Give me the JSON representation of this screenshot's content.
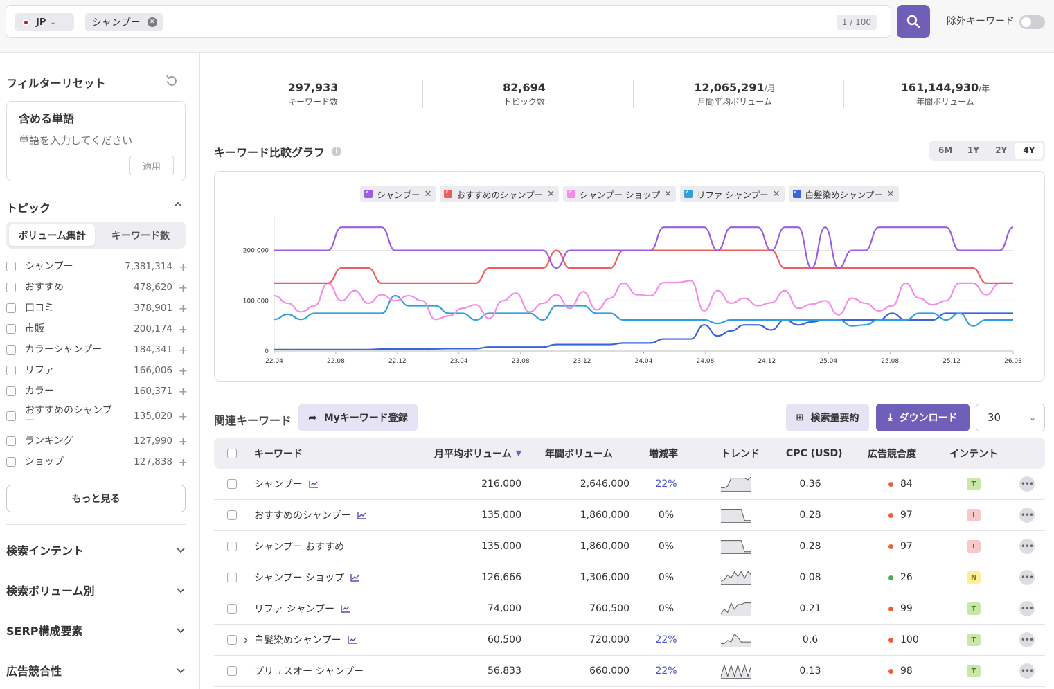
{
  "search": {
    "country": "JP",
    "keyword": "シャンプー",
    "count": "1 / 100",
    "exclude_label": "除外キーワード"
  },
  "sidebar": {
    "filter_reset": "フィルターリセット",
    "include_words_title": "含める単語",
    "include_words_placeholder": "単語を入力してください",
    "apply_label": "適用",
    "topic_title": "トピック",
    "seg_volume": "ボリューム集計",
    "seg_keywords": "キーワード数",
    "topics": [
      {
        "label": "シャンプー",
        "value": "7,381,314"
      },
      {
        "label": "おすすめ",
        "value": "478,620"
      },
      {
        "label": "口コミ",
        "value": "378,901"
      },
      {
        "label": "市販",
        "value": "200,174"
      },
      {
        "label": "カラーシャンプー",
        "value": "184,341"
      },
      {
        "label": "リファ",
        "value": "166,006"
      },
      {
        "label": "カラー",
        "value": "160,371"
      },
      {
        "label": "おすすめのシャンプー",
        "value": "135,020"
      },
      {
        "label": "ランキング",
        "value": "127,990"
      },
      {
        "label": "ショップ",
        "value": "127,838"
      }
    ],
    "more_label": "もっと見る",
    "accordions": [
      "検索インテント",
      "検索ボリューム別",
      "SERP構成要素",
      "広告競合性"
    ]
  },
  "stats": [
    {
      "value": "297,933",
      "unit": "",
      "label": "キーワード数"
    },
    {
      "value": "82,694",
      "unit": "",
      "label": "トピック数"
    },
    {
      "value": "12,065,291",
      "unit": "/月",
      "label": "月間平均ボリューム"
    },
    {
      "value": "161,144,930",
      "unit": "/年",
      "label": "年間ボリューム"
    }
  ],
  "graph": {
    "title": "キーワード比較グラフ",
    "periods": [
      "6M",
      "1Y",
      "2Y",
      "4Y"
    ],
    "active_period": "4Y"
  },
  "chart_data": {
    "type": "line",
    "x_ticks": [
      "22.04",
      "22.08",
      "22.12",
      "23.04",
      "23.08",
      "23.12",
      "24.04",
      "24.08",
      "24.12",
      "25.04",
      "25.08",
      "25.12",
      "26.03"
    ],
    "y_ticks": [
      "0",
      "100,000",
      "200,000"
    ],
    "ylim": [
      0,
      260000
    ],
    "series": [
      {
        "name": "シャンプー",
        "color": "#9b5de5",
        "values": [
          200000,
          200000,
          200000,
          200000,
          200000,
          246000,
          246000,
          246000,
          246000,
          200000,
          200000,
          200000,
          200000,
          200000,
          200000,
          200000,
          200000,
          200000,
          200000,
          200000,
          200000,
          165000,
          200000,
          200000,
          200000,
          200000,
          200000,
          200000,
          200000,
          246000,
          246000,
          246000,
          246000,
          200000,
          246000,
          246000,
          246000,
          200000,
          246000,
          246000,
          165000,
          246000,
          165000,
          200000,
          200000,
          246000,
          246000,
          246000,
          246000,
          246000,
          246000,
          200000,
          200000,
          200000,
          200000,
          246000
        ]
      },
      {
        "name": "おすすめのシャンプー",
        "color": "#ef5d5d",
        "values": [
          135000,
          135000,
          135000,
          135000,
          135000,
          165000,
          165000,
          165000,
          135000,
          135000,
          135000,
          135000,
          135000,
          135000,
          135000,
          135000,
          165000,
          165000,
          165000,
          165000,
          165000,
          200000,
          165000,
          165000,
          165000,
          165000,
          200000,
          200000,
          200000,
          200000,
          200000,
          200000,
          200000,
          200000,
          200000,
          200000,
          200000,
          200000,
          165000,
          165000,
          165000,
          165000,
          165000,
          165000,
          165000,
          165000,
          165000,
          165000,
          165000,
          165000,
          165000,
          165000,
          165000,
          135000,
          135000,
          135000
        ]
      },
      {
        "name": "シャンプー ショップ",
        "color": "#f48ce8",
        "values": [
          110000,
          95000,
          78000,
          90000,
          135000,
          100000,
          120000,
          95000,
          112000,
          100000,
          110000,
          100000,
          63000,
          70000,
          85000,
          92000,
          65000,
          100000,
          115000,
          78000,
          95000,
          112000,
          85000,
          118000,
          82000,
          105000,
          135000,
          112000,
          110000,
          136000,
          136000,
          140000,
          80000,
          120000,
          95000,
          105000,
          90000,
          96000,
          120000,
          85000,
          93000,
          100000,
          72000,
          105000,
          95000,
          80000,
          90000,
          135000,
          105000,
          92000,
          100000,
          135000,
          135000,
          112000,
          135000,
          135000
        ]
      },
      {
        "name": "リファ シャンプー",
        "color": "#2e9fe0",
        "values": [
          63000,
          73000,
          63000,
          75000,
          75000,
          75000,
          75000,
          75000,
          75000,
          110000,
          90000,
          90000,
          90000,
          75000,
          75000,
          62000,
          75000,
          75000,
          75000,
          75000,
          62000,
          90000,
          90000,
          90000,
          75000,
          75000,
          62000,
          62000,
          62000,
          62000,
          62000,
          62000,
          62000,
          55000,
          62000,
          62000,
          62000,
          62000,
          62000,
          62000,
          62000,
          62000,
          62000,
          50000,
          52000,
          62000,
          62000,
          62000,
          75000,
          75000,
          62000,
          75000,
          50000,
          62000,
          62000,
          62000
        ]
      },
      {
        "name": "白髪染めシャンプー",
        "color": "#3763db",
        "values": [
          3000,
          3000,
          3000,
          3000,
          3000,
          3000,
          3000,
          3000,
          4000,
          4000,
          4000,
          4000,
          4500,
          5000,
          5000,
          5000,
          8000,
          8000,
          8000,
          8000,
          8000,
          13000,
          13000,
          13000,
          13000,
          13000,
          16000,
          16000,
          16000,
          24000,
          24000,
          24000,
          52000,
          30000,
          40000,
          52000,
          52000,
          42000,
          62000,
          52000,
          58000,
          62000,
          62000,
          62000,
          62000,
          62000,
          75000,
          62000,
          62000,
          62000,
          75000,
          75000,
          75000,
          75000,
          75000,
          75000
        ]
      }
    ]
  },
  "related": {
    "title": "関連キーワード",
    "my_keyword_label": "Myキーワード登録",
    "summary_label": "検索量要約",
    "download_label": "ダウンロード",
    "page_size": "30",
    "columns": [
      "キーワード",
      "月平均ボリューム",
      "年間ボリューム",
      "増減率",
      "トレンド",
      "CPC (USD)",
      "広告競合度",
      "インテント"
    ],
    "rows": [
      {
        "keyword": "シャンプー",
        "trend_icon": true,
        "expand": false,
        "monthly": "216,000",
        "yearly": "2,646,000",
        "change": "22%",
        "change_up": true,
        "cpc": "0.36",
        "comp": "84",
        "comp_color": "#ef5d3a",
        "intent": "T",
        "intent_bg": "#c7e8a8",
        "intent_fg": "#4b7f2a",
        "spark": [
          2,
          2,
          3,
          8,
          8,
          8,
          8,
          8,
          7,
          9
        ]
      },
      {
        "keyword": "おすすめのシャンプー",
        "trend_icon": true,
        "expand": false,
        "monthly": "135,000",
        "yearly": "1,860,000",
        "change": "0%",
        "change_up": false,
        "cpc": "0.28",
        "comp": "97",
        "comp_color": "#ef5d3a",
        "intent": "I",
        "intent_bg": "#f7c8c8",
        "intent_fg": "#b33a3a",
        "spark": [
          8,
          8,
          8,
          8,
          8,
          8,
          8,
          1,
          1,
          1
        ]
      },
      {
        "keyword": "シャンプー おすすめ",
        "trend_icon": false,
        "expand": false,
        "monthly": "135,000",
        "yearly": "1,860,000",
        "change": "0%",
        "change_up": false,
        "cpc": "0.28",
        "comp": "97",
        "comp_color": "#ef5d3a",
        "intent": "I",
        "intent_bg": "#f7c8c8",
        "intent_fg": "#b33a3a",
        "spark": [
          8,
          8,
          8,
          8,
          8,
          8,
          8,
          1,
          1,
          1
        ]
      },
      {
        "keyword": "シャンプー ショップ",
        "trend_icon": true,
        "expand": false,
        "monthly": "126,666",
        "yearly": "1,306,000",
        "change": "0%",
        "change_up": false,
        "cpc": "0.08",
        "comp": "26",
        "comp_color": "#4caf50",
        "intent": "N",
        "intent_bg": "#fbef9a",
        "intent_fg": "#8a7a10",
        "spark": [
          2,
          3,
          6,
          4,
          8,
          5,
          8,
          4,
          8,
          6
        ]
      },
      {
        "keyword": "リファ シャンプー",
        "trend_icon": true,
        "expand": false,
        "monthly": "74,000",
        "yearly": "760,500",
        "change": "0%",
        "change_up": false,
        "cpc": "0.21",
        "comp": "99",
        "comp_color": "#ef5d3a",
        "intent": "T",
        "intent_bg": "#c7e8a8",
        "intent_fg": "#4b7f2a",
        "spark": [
          1,
          4,
          2,
          8,
          4,
          7,
          7,
          8,
          8,
          8
        ]
      },
      {
        "keyword": "白髪染めシャンプー",
        "trend_icon": true,
        "expand": true,
        "monthly": "60,500",
        "yearly": "720,000",
        "change": "22%",
        "change_up": true,
        "cpc": "0.6",
        "comp": "100",
        "comp_color": "#ef5d3a",
        "intent": "T",
        "intent_bg": "#c7e8a8",
        "intent_fg": "#4b7f2a",
        "spark": [
          2,
          2,
          4,
          3,
          8,
          6,
          3,
          3,
          3,
          3
        ]
      },
      {
        "keyword": "プリュスオー シャンプー",
        "trend_icon": false,
        "expand": false,
        "monthly": "56,833",
        "yearly": "660,000",
        "change": "22%",
        "change_up": true,
        "cpc": "0.13",
        "comp": "98",
        "comp_color": "#ef5d3a",
        "intent": "T",
        "intent_bg": "#c7e8a8",
        "intent_fg": "#4b7f2a",
        "spark": [
          1,
          8,
          1,
          8,
          1,
          8,
          1,
          8,
          1,
          8
        ]
      }
    ]
  }
}
